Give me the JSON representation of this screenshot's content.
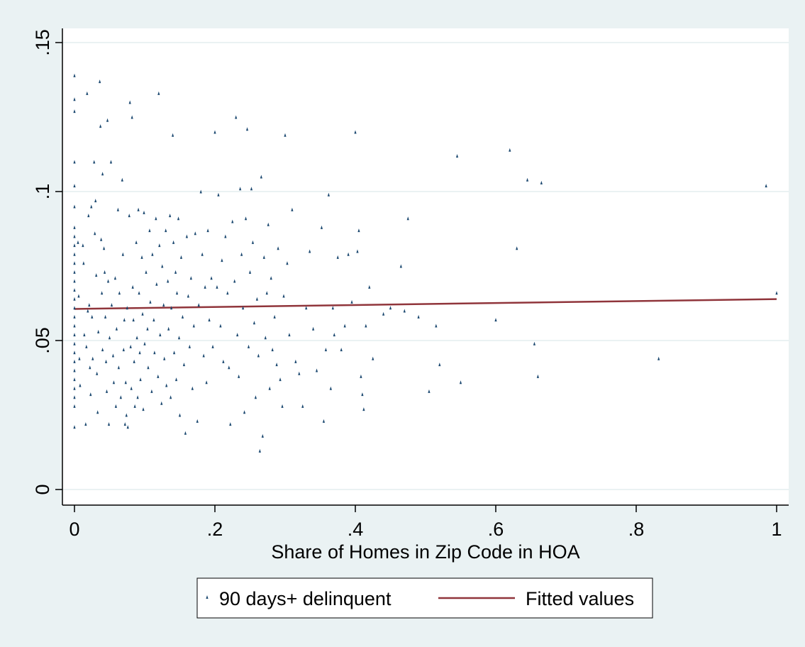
{
  "chart_data": {
    "type": "scatter",
    "title": "",
    "xlabel": "Share of Homes in Zip Code in HOA",
    "ylabel": "",
    "xlim": [
      0,
      1
    ],
    "ylim": [
      0,
      0.15
    ],
    "xticks": [
      0,
      0.2,
      0.4,
      0.6,
      0.8,
      1
    ],
    "xtick_labels": [
      "0",
      ".2",
      ".4",
      ".6",
      ".8",
      "1"
    ],
    "yticks": [
      0,
      0.05,
      0.1,
      0.15
    ],
    "ytick_labels": [
      "0",
      ".05",
      ".1",
      ".15"
    ],
    "grid": "horizontal",
    "legend_position": "bottom",
    "legend": [
      "90 days+ delinquent",
      "Fitted values"
    ],
    "colors": {
      "scatter": "#1a476f",
      "fit": "#90353b",
      "background": "#eaf2f3",
      "plot": "#ffffff",
      "grid": "#eaf2f3"
    },
    "series": [
      {
        "name": "90 days+ delinquent",
        "kind": "scatter",
        "points": [
          [
            0.0,
            0.139
          ],
          [
            0.0,
            0.131
          ],
          [
            0.0,
            0.127
          ],
          [
            0.0,
            0.11
          ],
          [
            0.0,
            0.102
          ],
          [
            0.0,
            0.095
          ],
          [
            0.0,
            0.088
          ],
          [
            0.0,
            0.085
          ],
          [
            0.0,
            0.082
          ],
          [
            0.0,
            0.079
          ],
          [
            0.0,
            0.076
          ],
          [
            0.0,
            0.073
          ],
          [
            0.0,
            0.07
          ],
          [
            0.0,
            0.067
          ],
          [
            0.0,
            0.064
          ],
          [
            0.0,
            0.061
          ],
          [
            0.0,
            0.058
          ],
          [
            0.0,
            0.055
          ],
          [
            0.0,
            0.052
          ],
          [
            0.0,
            0.049
          ],
          [
            0.0,
            0.046
          ],
          [
            0.0,
            0.043
          ],
          [
            0.0,
            0.04
          ],
          [
            0.0,
            0.037
          ],
          [
            0.0,
            0.034
          ],
          [
            0.0,
            0.031
          ],
          [
            0.0,
            0.028
          ],
          [
            0.0,
            0.021
          ],
          [
            0.005,
            0.083
          ],
          [
            0.006,
            0.065
          ],
          [
            0.007,
            0.044
          ],
          [
            0.008,
            0.035
          ],
          [
            0.012,
            0.082
          ],
          [
            0.013,
            0.076
          ],
          [
            0.014,
            0.052
          ],
          [
            0.016,
            0.022
          ],
          [
            0.017,
            0.048
          ],
          [
            0.018,
            0.133
          ],
          [
            0.019,
            0.06
          ],
          [
            0.02,
            0.092
          ],
          [
            0.021,
            0.062
          ],
          [
            0.022,
            0.041
          ],
          [
            0.023,
            0.032
          ],
          [
            0.024,
            0.095
          ],
          [
            0.025,
            0.058
          ],
          [
            0.026,
            0.044
          ],
          [
            0.028,
            0.11
          ],
          [
            0.029,
            0.086
          ],
          [
            0.03,
            0.097
          ],
          [
            0.031,
            0.072
          ],
          [
            0.032,
            0.039
          ],
          [
            0.033,
            0.026
          ],
          [
            0.034,
            0.053
          ],
          [
            0.036,
            0.137
          ],
          [
            0.037,
            0.122
          ],
          [
            0.038,
            0.084
          ],
          [
            0.039,
            0.066
          ],
          [
            0.04,
            0.047
          ],
          [
            0.04,
            0.106
          ],
          [
            0.042,
            0.081
          ],
          [
            0.043,
            0.073
          ],
          [
            0.044,
            0.058
          ],
          [
            0.045,
            0.043
          ],
          [
            0.046,
            0.033
          ],
          [
            0.047,
            0.124
          ],
          [
            0.048,
            0.07
          ],
          [
            0.049,
            0.022
          ],
          [
            0.05,
            0.051
          ],
          [
            0.052,
            0.11
          ],
          [
            0.053,
            0.062
          ],
          [
            0.055,
            0.045
          ],
          [
            0.056,
            0.036
          ],
          [
            0.058,
            0.071
          ],
          [
            0.059,
            0.028
          ],
          [
            0.06,
            0.054
          ],
          [
            0.062,
            0.094
          ],
          [
            0.063,
            0.041
          ],
          [
            0.064,
            0.066
          ],
          [
            0.066,
            0.031
          ],
          [
            0.068,
            0.104
          ],
          [
            0.069,
            0.079
          ],
          [
            0.07,
            0.047
          ],
          [
            0.071,
            0.057
          ],
          [
            0.072,
            0.022
          ],
          [
            0.073,
            0.036
          ],
          [
            0.074,
            0.025
          ],
          [
            0.075,
            0.061
          ],
          [
            0.076,
            0.021
          ],
          [
            0.078,
            0.092
          ],
          [
            0.079,
            0.13
          ],
          [
            0.08,
            0.048
          ],
          [
            0.081,
            0.034
          ],
          [
            0.082,
            0.125
          ],
          [
            0.083,
            0.068
          ],
          [
            0.084,
            0.057
          ],
          [
            0.085,
            0.043
          ],
          [
            0.086,
            0.028
          ],
          [
            0.088,
            0.083
          ],
          [
            0.089,
            0.051
          ],
          [
            0.09,
            0.031
          ],
          [
            0.091,
            0.094
          ],
          [
            0.092,
            0.066
          ],
          [
            0.093,
            0.046
          ],
          [
            0.094,
            0.037
          ],
          [
            0.096,
            0.078
          ],
          [
            0.097,
            0.059
          ],
          [
            0.098,
            0.027
          ],
          [
            0.099,
            0.093
          ],
          [
            0.1,
            0.049
          ],
          [
            0.102,
            0.073
          ],
          [
            0.104,
            0.054
          ],
          [
            0.105,
            0.041
          ],
          [
            0.107,
            0.087
          ],
          [
            0.108,
            0.063
          ],
          [
            0.11,
            0.033
          ],
          [
            0.111,
            0.079
          ],
          [
            0.113,
            0.057
          ],
          [
            0.114,
            0.046
          ],
          [
            0.116,
            0.091
          ],
          [
            0.117,
            0.069
          ],
          [
            0.119,
            0.038
          ],
          [
            0.12,
            0.133
          ],
          [
            0.121,
            0.082
          ],
          [
            0.122,
            0.052
          ],
          [
            0.124,
            0.029
          ],
          [
            0.125,
            0.075
          ],
          [
            0.127,
            0.062
          ],
          [
            0.128,
            0.044
          ],
          [
            0.13,
            0.087
          ],
          [
            0.131,
            0.035
          ],
          [
            0.133,
            0.07
          ],
          [
            0.134,
            0.054
          ],
          [
            0.136,
            0.092
          ],
          [
            0.137,
            0.031
          ],
          [
            0.138,
            0.061
          ],
          [
            0.14,
            0.119
          ],
          [
            0.141,
            0.083
          ],
          [
            0.142,
            0.046
          ],
          [
            0.144,
            0.073
          ],
          [
            0.145,
            0.037
          ],
          [
            0.146,
            0.066
          ],
          [
            0.148,
            0.091
          ],
          [
            0.149,
            0.051
          ],
          [
            0.15,
            0.025
          ],
          [
            0.152,
            0.078
          ],
          [
            0.154,
            0.058
          ],
          [
            0.156,
            0.042
          ],
          [
            0.158,
            0.019
          ],
          [
            0.16,
            0.085
          ],
          [
            0.162,
            0.065
          ],
          [
            0.164,
            0.048
          ],
          [
            0.166,
            0.071
          ],
          [
            0.168,
            0.034
          ],
          [
            0.17,
            0.055
          ],
          [
            0.172,
            0.086
          ],
          [
            0.175,
            0.023
          ],
          [
            0.177,
            0.062
          ],
          [
            0.18,
            0.1
          ],
          [
            0.182,
            0.079
          ],
          [
            0.184,
            0.045
          ],
          [
            0.186,
            0.068
          ],
          [
            0.188,
            0.036
          ],
          [
            0.19,
            0.087
          ],
          [
            0.192,
            0.057
          ],
          [
            0.195,
            0.071
          ],
          [
            0.197,
            0.048
          ],
          [
            0.2,
            0.12
          ],
          [
            0.203,
            0.068
          ],
          [
            0.205,
            0.099
          ],
          [
            0.208,
            0.055
          ],
          [
            0.21,
            0.077
          ],
          [
            0.212,
            0.043
          ],
          [
            0.215,
            0.085
          ],
          [
            0.218,
            0.066
          ],
          [
            0.22,
            0.041
          ],
          [
            0.222,
            0.022
          ],
          [
            0.225,
            0.09
          ],
          [
            0.228,
            0.07
          ],
          [
            0.23,
            0.125
          ],
          [
            0.232,
            0.052
          ],
          [
            0.234,
            0.038
          ],
          [
            0.236,
            0.101
          ],
          [
            0.238,
            0.079
          ],
          [
            0.24,
            0.061
          ],
          [
            0.242,
            0.026
          ],
          [
            0.244,
            0.091
          ],
          [
            0.246,
            0.121
          ],
          [
            0.248,
            0.048
          ],
          [
            0.25,
            0.073
          ],
          [
            0.252,
            0.101
          ],
          [
            0.254,
            0.083
          ],
          [
            0.256,
            0.056
          ],
          [
            0.258,
            0.031
          ],
          [
            0.26,
            0.064
          ],
          [
            0.262,
            0.045
          ],
          [
            0.264,
            0.013
          ],
          [
            0.266,
            0.105
          ],
          [
            0.268,
            0.018
          ],
          [
            0.27,
            0.078
          ],
          [
            0.272,
            0.051
          ],
          [
            0.274,
            0.066
          ],
          [
            0.276,
            0.089
          ],
          [
            0.278,
            0.034
          ],
          [
            0.28,
            0.071
          ],
          [
            0.282,
            0.047
          ],
          [
            0.285,
            0.058
          ],
          [
            0.288,
            0.042
          ],
          [
            0.29,
            0.081
          ],
          [
            0.293,
            0.037
          ],
          [
            0.296,
            0.028
          ],
          [
            0.298,
            0.065
          ],
          [
            0.3,
            0.119
          ],
          [
            0.303,
            0.076
          ],
          [
            0.306,
            0.052
          ],
          [
            0.31,
            0.094
          ],
          [
            0.315,
            0.043
          ],
          [
            0.32,
            0.039
          ],
          [
            0.325,
            0.028
          ],
          [
            0.33,
            0.061
          ],
          [
            0.335,
            0.08
          ],
          [
            0.34,
            0.054
          ],
          [
            0.345,
            0.04
          ],
          [
            0.352,
            0.088
          ],
          [
            0.355,
            0.023
          ],
          [
            0.358,
            0.047
          ],
          [
            0.362,
            0.099
          ],
          [
            0.365,
            0.034
          ],
          [
            0.368,
            0.061
          ],
          [
            0.37,
            0.052
          ],
          [
            0.375,
            0.078
          ],
          [
            0.38,
            0.047
          ],
          [
            0.385,
            0.055
          ],
          [
            0.39,
            0.079
          ],
          [
            0.395,
            0.063
          ],
          [
            0.4,
            0.12
          ],
          [
            0.403,
            0.08
          ],
          [
            0.405,
            0.087
          ],
          [
            0.408,
            0.038
          ],
          [
            0.41,
            0.032
          ],
          [
            0.412,
            0.027
          ],
          [
            0.415,
            0.055
          ],
          [
            0.42,
            0.068
          ],
          [
            0.425,
            0.044
          ],
          [
            0.44,
            0.059
          ],
          [
            0.45,
            0.061
          ],
          [
            0.465,
            0.075
          ],
          [
            0.47,
            0.06
          ],
          [
            0.475,
            0.091
          ],
          [
            0.49,
            0.058
          ],
          [
            0.505,
            0.033
          ],
          [
            0.515,
            0.055
          ],
          [
            0.52,
            0.042
          ],
          [
            0.545,
            0.112
          ],
          [
            0.55,
            0.036
          ],
          [
            0.6,
            0.057
          ],
          [
            0.62,
            0.114
          ],
          [
            0.63,
            0.081
          ],
          [
            0.645,
            0.104
          ],
          [
            0.655,
            0.049
          ],
          [
            0.66,
            0.038
          ],
          [
            0.665,
            0.103
          ],
          [
            0.832,
            0.044
          ],
          [
            0.985,
            0.102
          ],
          [
            1.0,
            0.066
          ]
        ]
      },
      {
        "name": "Fitted values",
        "kind": "line",
        "points": [
          [
            0,
            0.0606
          ],
          [
            1,
            0.0639
          ]
        ]
      }
    ]
  }
}
